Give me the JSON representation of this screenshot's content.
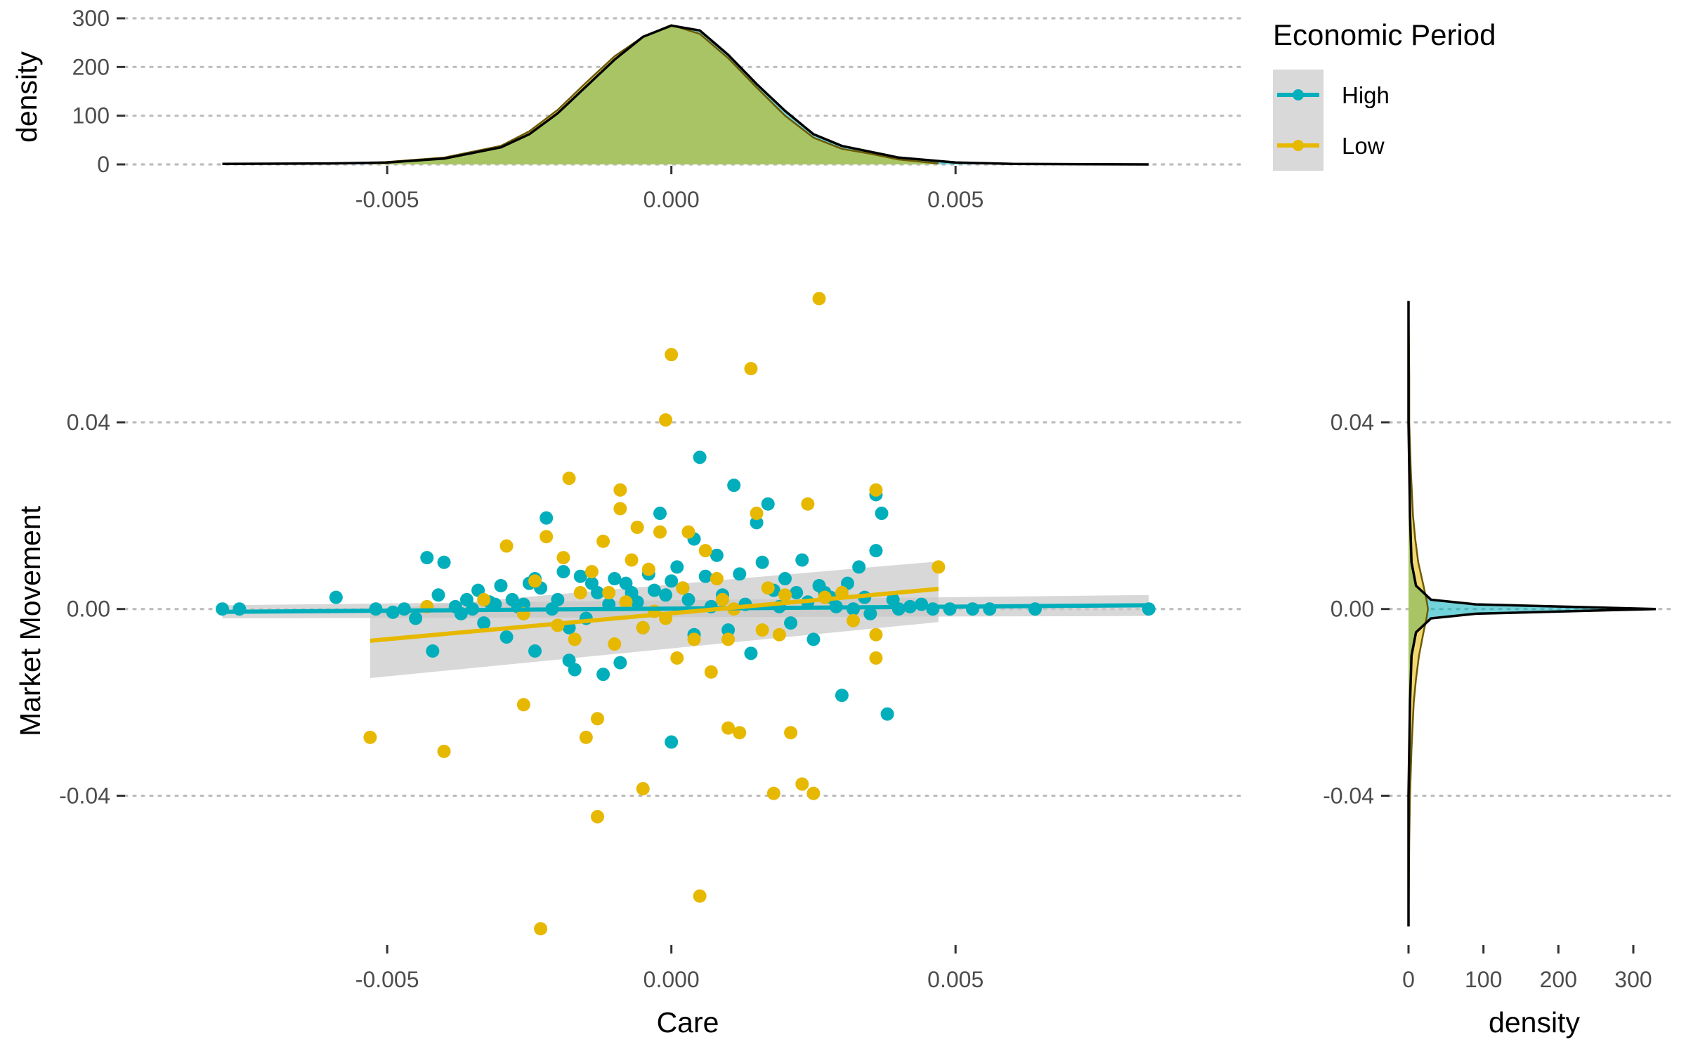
{
  "chart_data": [
    {
      "panel": "top-marginal",
      "type": "area",
      "ylabel": "density",
      "xlim": [
        -0.0085,
        0.0092
      ],
      "ylim": [
        0,
        300
      ],
      "x_ticks": [
        -0.005,
        0.0,
        0.005
      ],
      "x_tick_labels": [
        "-0.005",
        "0.000",
        "0.005"
      ],
      "y_ticks": [
        0,
        100,
        200,
        300
      ],
      "y_tick_labels": [
        "0",
        "100",
        "200",
        "300"
      ],
      "grid": "horizontal dotted",
      "series": [
        {
          "name": "High",
          "x": [
            -0.0079,
            -0.006,
            -0.005,
            -0.004,
            -0.003,
            -0.0025,
            -0.002,
            -0.0015,
            -0.001,
            -0.0005,
            0.0,
            0.0005,
            0.001,
            0.0015,
            0.002,
            0.0025,
            0.003,
            0.0035,
            0.004,
            0.005,
            0.006,
            0.0084
          ],
          "y": [
            1,
            2,
            4,
            12,
            35,
            62,
            105,
            160,
            215,
            262,
            285,
            275,
            225,
            165,
            110,
            62,
            38,
            26,
            14,
            4,
            1,
            0
          ]
        },
        {
          "name": "Low",
          "x": [
            -0.0053,
            -0.005,
            -0.004,
            -0.003,
            -0.0025,
            -0.002,
            -0.0015,
            -0.001,
            -0.0005,
            0.0,
            0.0005,
            0.001,
            0.0015,
            0.002,
            0.0025,
            0.003,
            0.0035,
            0.004,
            0.0047
          ],
          "y": [
            2,
            5,
            14,
            38,
            68,
            112,
            168,
            222,
            262,
            286,
            268,
            218,
            158,
            100,
            55,
            32,
            22,
            10,
            2
          ]
        }
      ]
    },
    {
      "panel": "main-scatter",
      "type": "scatter",
      "xlabel": "Care",
      "ylabel": "Market Movement",
      "xlim": [
        -0.0085,
        0.0092
      ],
      "ylim": [
        -0.072,
        0.068
      ],
      "x_ticks": [
        -0.005,
        0.0,
        0.005
      ],
      "x_tick_labels": [
        "-0.005",
        "0.000",
        "0.005"
      ],
      "y_ticks": [
        -0.04,
        0.0,
        0.04
      ],
      "y_tick_labels": [
        "-0.04",
        "0.00",
        "0.04"
      ],
      "grid": "horizontal dotted",
      "legend": {
        "title": "Economic Period",
        "position": "right",
        "entries": [
          "High",
          "Low"
        ]
      },
      "series": [
        {
          "name": "High",
          "color": "#00AFBB",
          "points": [
            [
              -0.0079,
              0.0
            ],
            [
              -0.0076,
              0.0
            ],
            [
              -0.0059,
              0.0025
            ],
            [
              -0.0052,
              0.0
            ],
            [
              -0.0049,
              -0.0007
            ],
            [
              -0.0047,
              0.0
            ],
            [
              -0.0045,
              -0.002
            ],
            [
              -0.0043,
              0.011
            ],
            [
              -0.0042,
              -0.009
            ],
            [
              -0.0041,
              0.003
            ],
            [
              -0.004,
              0.01
            ],
            [
              -0.0038,
              0.0005
            ],
            [
              -0.0037,
              -0.001
            ],
            [
              -0.0036,
              0.002
            ],
            [
              -0.0035,
              0.0
            ],
            [
              -0.0034,
              0.004
            ],
            [
              -0.0033,
              -0.003
            ],
            [
              -0.0032,
              0.0015
            ],
            [
              -0.0031,
              0.001
            ],
            [
              -0.003,
              0.005
            ],
            [
              -0.0029,
              -0.006
            ],
            [
              -0.0028,
              0.002
            ],
            [
              -0.0027,
              0.0005
            ],
            [
              -0.0026,
              0.001
            ],
            [
              -0.0025,
              0.0055
            ],
            [
              -0.0024,
              0.0065
            ],
            [
              -0.0024,
              -0.009
            ],
            [
              -0.0023,
              0.0045
            ],
            [
              -0.0022,
              0.0195
            ],
            [
              -0.0021,
              0.0
            ],
            [
              -0.002,
              0.002
            ],
            [
              -0.0019,
              0.008
            ],
            [
              -0.0018,
              -0.004
            ],
            [
              -0.0018,
              -0.011
            ],
            [
              -0.0017,
              -0.013
            ],
            [
              -0.0016,
              0.007
            ],
            [
              -0.0015,
              -0.002
            ],
            [
              -0.0014,
              0.0055
            ],
            [
              -0.0013,
              0.0035
            ],
            [
              -0.0012,
              -0.014
            ],
            [
              -0.0011,
              0.001
            ],
            [
              -0.001,
              0.0065
            ],
            [
              -0.0009,
              -0.0115
            ],
            [
              -0.0008,
              0.0055
            ],
            [
              -0.0007,
              0.0035
            ],
            [
              -0.0006,
              0.0015
            ],
            [
              -0.0005,
              -0.004
            ],
            [
              -0.0004,
              0.0075
            ],
            [
              -0.0003,
              0.004
            ],
            [
              -0.0002,
              0.0205
            ],
            [
              -0.0001,
              0.003
            ],
            [
              0.0,
              0.006
            ],
            [
              0.0,
              -0.0285
            ],
            [
              0.0001,
              0.009
            ],
            [
              0.0002,
              0.0045
            ],
            [
              0.0003,
              0.002
            ],
            [
              0.0004,
              0.015
            ],
            [
              0.0004,
              -0.0055
            ],
            [
              0.0005,
              0.0325
            ],
            [
              0.0006,
              0.007
            ],
            [
              0.0007,
              0.0005
            ],
            [
              0.0008,
              0.0115
            ],
            [
              0.0009,
              0.003
            ],
            [
              0.001,
              -0.0045
            ],
            [
              0.0011,
              0.0265
            ],
            [
              0.0012,
              0.0075
            ],
            [
              0.0013,
              0.001
            ],
            [
              0.0014,
              -0.0095
            ],
            [
              0.0015,
              0.0185
            ],
            [
              0.0016,
              0.01
            ],
            [
              0.0017,
              0.0225
            ],
            [
              0.0018,
              0.004
            ],
            [
              0.0019,
              0.0005
            ],
            [
              0.002,
              0.0065
            ],
            [
              0.0021,
              -0.003
            ],
            [
              0.0022,
              0.0035
            ],
            [
              0.0023,
              0.0105
            ],
            [
              0.0024,
              0.0015
            ],
            [
              0.0025,
              -0.0065
            ],
            [
              0.0026,
              0.005
            ],
            [
              0.0027,
              0.0035
            ],
            [
              0.0028,
              0.0025
            ],
            [
              0.0029,
              0.0005
            ],
            [
              0.003,
              -0.0185
            ],
            [
              0.0031,
              0.0055
            ],
            [
              0.0032,
              0.0
            ],
            [
              0.0033,
              0.009
            ],
            [
              0.0034,
              0.0025
            ],
            [
              0.0035,
              -0.001
            ],
            [
              0.0036,
              0.0245
            ],
            [
              0.0036,
              0.0125
            ],
            [
              0.0037,
              0.0205
            ],
            [
              0.0038,
              -0.0225
            ],
            [
              0.0039,
              0.002
            ],
            [
              0.004,
              0.0
            ],
            [
              0.0042,
              0.0005
            ],
            [
              0.0044,
              0.001
            ],
            [
              0.0046,
              0.0
            ],
            [
              0.0049,
              0.0
            ],
            [
              0.0053,
              0.0
            ],
            [
              0.0056,
              0.0
            ],
            [
              0.0064,
              0.0
            ],
            [
              0.0084,
              0.0
            ]
          ]
        },
        {
          "name": "Low",
          "color": "#E7B800",
          "points": [
            [
              -0.0053,
              -0.0275
            ],
            [
              -0.0043,
              0.0005
            ],
            [
              -0.004,
              -0.0305
            ],
            [
              -0.0033,
              0.002
            ],
            [
              -0.0029,
              0.0135
            ],
            [
              -0.0026,
              -0.001
            ],
            [
              -0.0026,
              -0.0205
            ],
            [
              -0.0024,
              0.006
            ],
            [
              -0.0023,
              -0.0685
            ],
            [
              -0.0022,
              0.0155
            ],
            [
              -0.002,
              -0.0035
            ],
            [
              -0.0019,
              0.011
            ],
            [
              -0.0018,
              0.028
            ],
            [
              -0.0017,
              -0.0065
            ],
            [
              -0.0016,
              0.0035
            ],
            [
              -0.0015,
              -0.0275
            ],
            [
              -0.0014,
              0.008
            ],
            [
              -0.0013,
              -0.0235
            ],
            [
              -0.0013,
              -0.0445
            ],
            [
              -0.0012,
              0.0145
            ],
            [
              -0.0011,
              0.0035
            ],
            [
              -0.001,
              -0.0075
            ],
            [
              -0.0009,
              0.0255
            ],
            [
              -0.0009,
              0.0215
            ],
            [
              -0.0008,
              0.0015
            ],
            [
              -0.0007,
              0.0105
            ],
            [
              -0.0006,
              0.0175
            ],
            [
              -0.0005,
              -0.004
            ],
            [
              -0.0005,
              -0.0385
            ],
            [
              -0.0004,
              0.0085
            ],
            [
              -0.0003,
              -0.0005
            ],
            [
              -0.0002,
              0.0165
            ],
            [
              -0.0001,
              -0.002
            ],
            [
              0.0,
              0.0545
            ],
            [
              -0.0001,
              0.0405
            ],
            [
              0.0001,
              -0.0105
            ],
            [
              0.0002,
              0.0045
            ],
            [
              0.0003,
              0.0165
            ],
            [
              0.0004,
              -0.0065
            ],
            [
              0.0005,
              -0.0615
            ],
            [
              0.0006,
              0.0125
            ],
            [
              0.0007,
              -0.0135
            ],
            [
              0.0008,
              0.0065
            ],
            [
              0.0009,
              0.002
            ],
            [
              0.001,
              -0.0065
            ],
            [
              0.001,
              -0.0255
            ],
            [
              0.0011,
              0.0
            ],
            [
              0.0012,
              -0.0265
            ],
            [
              0.0014,
              0.0515
            ],
            [
              0.0015,
              0.0205
            ],
            [
              0.0016,
              -0.0045
            ],
            [
              0.0017,
              0.0045
            ],
            [
              0.0018,
              -0.0395
            ],
            [
              0.0019,
              -0.0055
            ],
            [
              0.002,
              0.003
            ],
            [
              0.0021,
              -0.0265
            ],
            [
              0.0023,
              -0.0375
            ],
            [
              0.0024,
              0.0225
            ],
            [
              0.0025,
              -0.0395
            ],
            [
              0.0026,
              0.0665
            ],
            [
              0.0027,
              0.0025
            ],
            [
              0.003,
              0.0035
            ],
            [
              0.0032,
              -0.0025
            ],
            [
              0.0036,
              0.0255
            ],
            [
              0.0036,
              -0.0105
            ],
            [
              0.0036,
              -0.0055
            ],
            [
              0.0047,
              0.009
            ]
          ]
        }
      ],
      "regression_lines": [
        {
          "name": "High",
          "x": [
            -0.0079,
            0.0084
          ],
          "y": [
            -0.0006,
            0.0008
          ],
          "ci_band": {
            "x": [
              -0.0079,
              0.0084
            ],
            "lower": [
              -0.002,
              -0.0015
            ],
            "upper": [
              0.0008,
              0.003
            ]
          }
        },
        {
          "name": "Low",
          "x": [
            -0.0053,
            0.0047
          ],
          "y": [
            -0.0068,
            0.0043
          ],
          "ci_band": {
            "x": [
              -0.0053,
              0.0047
            ],
            "lower": [
              -0.0148,
              -0.0028
            ],
            "upper": [
              -0.0003,
              0.0102
            ]
          }
        }
      ]
    },
    {
      "panel": "right-marginal",
      "type": "area",
      "xlabel": "density",
      "xlim": [
        0,
        340
      ],
      "ylim": [
        -0.072,
        0.068
      ],
      "x_ticks": [
        0,
        100,
        200,
        300
      ],
      "x_tick_labels": [
        "0",
        "100",
        "200",
        "300"
      ],
      "y_ticks": [
        -0.04,
        0.0,
        0.04
      ],
      "y_tick_labels": [
        "-0.04",
        "0.00",
        "0.04"
      ],
      "grid": "horizontal dotted",
      "series": [
        {
          "name": "High",
          "y": [
            -0.068,
            -0.04,
            -0.02,
            -0.01,
            -0.005,
            -0.002,
            -0.001,
            0.0,
            0.001,
            0.002,
            0.005,
            0.01,
            0.02,
            0.04,
            0.066
          ],
          "density": [
            0,
            0,
            2,
            4,
            10,
            30,
            90,
            330,
            90,
            30,
            10,
            4,
            2,
            0,
            0
          ]
        },
        {
          "name": "Low",
          "y": [
            -0.068,
            -0.05,
            -0.04,
            -0.03,
            -0.02,
            -0.015,
            -0.01,
            -0.005,
            -0.002,
            0.0,
            0.002,
            0.005,
            0.01,
            0.015,
            0.02,
            0.03,
            0.04,
            0.05,
            0.066
          ],
          "density": [
            0,
            1,
            2,
            4,
            7,
            10,
            14,
            20,
            24,
            26,
            24,
            20,
            13,
            9,
            6,
            3,
            1,
            1,
            0
          ]
        }
      ]
    }
  ],
  "legend": {
    "title": "Economic Period",
    "entries": [
      {
        "label": "High",
        "color": "#00AFBB"
      },
      {
        "label": "Low",
        "color": "#E7B800"
      }
    ]
  },
  "colors": {
    "high": "#00AFBB",
    "low": "#E7B800",
    "overlap_fill": "#A8C464",
    "ci_band": "#C8C8C8"
  }
}
